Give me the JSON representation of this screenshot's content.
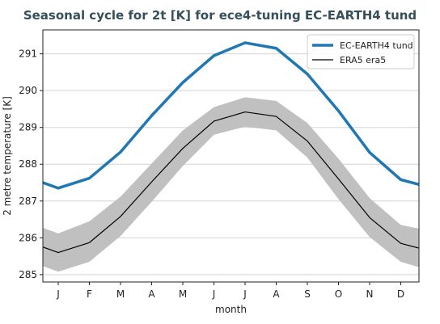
{
  "chart_data": {
    "type": "line",
    "title": "Seasonal cycle for 2t [K] for ece4-tuning EC-EARTH4 tund",
    "xlabel": "month",
    "ylabel": "2 metre temperature [K]",
    "categories": [
      "J",
      "F",
      "M",
      "A",
      "M",
      "J",
      "J",
      "A",
      "S",
      "O",
      "N",
      "D"
    ],
    "ylim": [
      284.8,
      291.65
    ],
    "yticks": [
      285,
      286,
      287,
      288,
      289,
      290,
      291
    ],
    "grid": "horizontal",
    "legend_position": "top-right",
    "series": [
      {
        "name": "EC-EARTH4 tund",
        "color": "#1f77b4",
        "values": [
          287.35,
          287.62,
          288.33,
          289.32,
          290.22,
          290.95,
          291.3,
          291.15,
          290.45,
          289.45,
          288.32,
          287.58
        ],
        "edge_values": {
          "left": 287.5,
          "right": 287.45
        }
      },
      {
        "name": "ERA5 era5",
        "color": "#000000",
        "values": [
          285.6,
          285.87,
          286.58,
          287.52,
          288.43,
          289.17,
          289.42,
          289.3,
          288.63,
          287.6,
          286.55,
          285.85
        ],
        "band_upper": [
          286.12,
          286.45,
          287.12,
          288.02,
          288.92,
          289.55,
          289.82,
          289.72,
          289.12,
          288.15,
          287.08,
          286.35
        ],
        "band_lower": [
          285.08,
          285.35,
          286.05,
          286.98,
          287.95,
          288.8,
          289.02,
          288.92,
          288.18,
          287.05,
          286.02,
          285.35
        ],
        "edge_values": {
          "left": 285.75,
          "right": 285.72
        },
        "band_edge_upper": {
          "left": 286.27,
          "right": 286.25
        },
        "band_edge_lower": {
          "left": 285.23,
          "right": 285.2
        }
      }
    ]
  }
}
